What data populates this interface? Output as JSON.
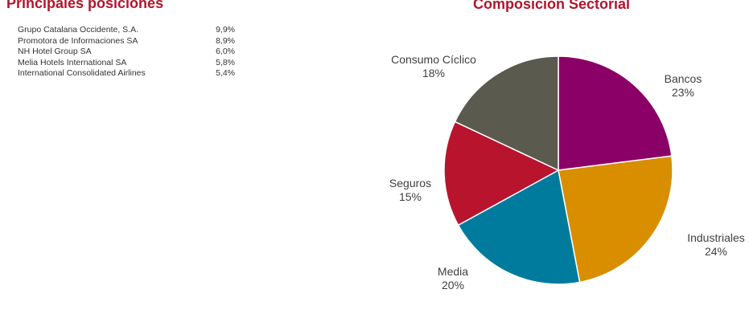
{
  "positions": {
    "title": "Principales posiciones",
    "rows": [
      {
        "name": "Grupo Catalana Occidente, S.A.",
        "pct": "9,9%"
      },
      {
        "name": "Promotora de Informaciones SA",
        "pct": "8,9%"
      },
      {
        "name": "NH Hotel Group SA",
        "pct": "6,0%"
      },
      {
        "name": "Melia Hotels International SA",
        "pct": "5,8%"
      },
      {
        "name": "International Consolidated Airlines",
        "pct": "5,4%"
      }
    ]
  },
  "chart_data": {
    "type": "pie",
    "title": "Composición Sectorial",
    "slices": [
      {
        "label": "Bancos",
        "value": 23,
        "value_label": "23%",
        "color": "#8b0066"
      },
      {
        "label": "Industriales",
        "value": 24,
        "value_label": "24%",
        "color": "#d98e00"
      },
      {
        "label": "Media",
        "value": 20,
        "value_label": "20%",
        "color": "#007b9e"
      },
      {
        "label": "Seguros",
        "value": 15,
        "value_label": "15%",
        "color": "#b8142e"
      },
      {
        "label": "Consumo Cíclico",
        "value": 18,
        "value_label": "18%",
        "color": "#5b5a4e"
      }
    ]
  }
}
